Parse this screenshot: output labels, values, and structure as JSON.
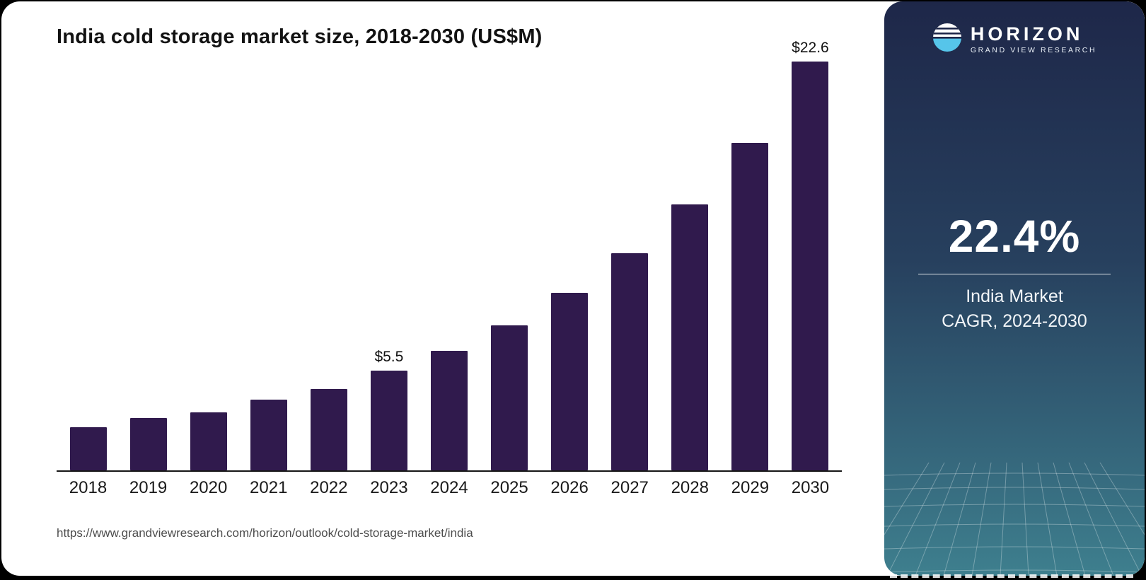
{
  "page": {
    "title": "India cold storage market size, 2018-2030 (US$M)",
    "source_url": "https://www.grandviewresearch.com/horizon/outlook/cold-storage-market/india"
  },
  "chart_data": {
    "type": "bar",
    "title": "India cold storage market size, 2018-2030 (US$M)",
    "unit": "US$M",
    "categories": [
      "2018",
      "2019",
      "2020",
      "2021",
      "2022",
      "2023",
      "2024",
      "2025",
      "2026",
      "2027",
      "2028",
      "2029",
      "2030"
    ],
    "values": [
      2.4,
      2.9,
      3.2,
      3.9,
      4.5,
      5.5,
      6.6,
      8.0,
      9.8,
      12.0,
      14.7,
      18.1,
      22.6
    ],
    "data_labels": {
      "2023": "$5.5",
      "2030": "$22.6"
    },
    "xlabel": "",
    "ylabel": "",
    "ylim": [
      0,
      22.6
    ],
    "grid": false,
    "legend": false,
    "bar_color": "#301a4d"
  },
  "sidebar": {
    "brand": {
      "name": "HORIZON",
      "subtitle": "GRAND VIEW RESEARCH"
    },
    "stat": {
      "value": "22.4%",
      "line1": "India Market",
      "line2": "CAGR, 2024-2030"
    },
    "colors": {
      "gradient_top": "#1e2749",
      "gradient_bottom": "#3e7f8e",
      "logo_blue": "#56c5ea"
    }
  }
}
